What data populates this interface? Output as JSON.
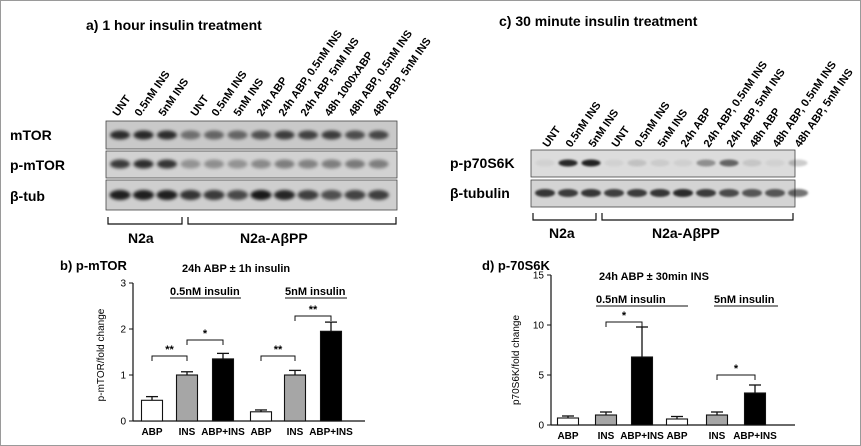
{
  "panel_a": {
    "title": "a) 1 hour insulin treatment",
    "lanes": [
      "UNT",
      "0.5nM INS",
      "5nM INS",
      "UNT",
      "0.5nM INS",
      "5nM INS",
      "24h ABP",
      "24h ABP, 0.5nM INS",
      "24h ABP, 5nM INS",
      "48h 1000xABP",
      "48h ABP, 0.5nM INS",
      "48h ABP, 5nM INS"
    ],
    "rows": [
      "mTOR",
      "p-mTOR",
      "β-tub"
    ],
    "groups": [
      "N2a",
      "N2a-AβPP"
    ]
  },
  "panel_c": {
    "title": "c)  30 minute insulin treatment",
    "lanes": [
      "UNT",
      "0.5nM INS",
      "5nM INS",
      "UNT",
      "0.5nM INS",
      "5nM INS",
      "24h ABP",
      "24h ABP, 0.5nM INS",
      "24h ABP, 5nM INS",
      "48h ABP",
      "48h ABP, 0.5nM INS",
      "48h ABP, 5nM INS"
    ],
    "rows": [
      "p-p70S6K",
      "β-tubulin"
    ],
    "groups": [
      "N2a",
      "N2a-AβPP"
    ]
  },
  "chart_data": [
    {
      "type": "bar",
      "panel_label": "b) p-mTOR",
      "title": "24h ABP ± 1h insulin",
      "ylabel": "p-mTOR/fold change",
      "ylim": [
        0,
        3
      ],
      "yticks": [
        "0",
        "1",
        "2",
        "3"
      ],
      "categories": [
        "ABP",
        "INS",
        "ABP+INS",
        "ABP",
        "INS",
        "ABP+INS"
      ],
      "values": [
        0.45,
        1.0,
        1.35,
        0.2,
        1.0,
        1.95
      ],
      "errors": [
        0.08,
        0.07,
        0.12,
        0.04,
        0.1,
        0.2
      ],
      "bar_colors": [
        "#ffffff",
        "#a6a6a6",
        "#000000",
        "#ffffff",
        "#a6a6a6",
        "#000000"
      ],
      "group_labels": [
        "0.5nM insulin",
        "5nM insulin"
      ],
      "significance": [
        "**",
        "*",
        "**",
        "**"
      ]
    },
    {
      "type": "bar",
      "panel_label": "d) p-70S6K",
      "title": "24h ABP ± 30min INS",
      "ylabel": "p70S6K/fold change",
      "ylim": [
        0,
        15
      ],
      "yticks": [
        "0",
        "5",
        "10",
        "15"
      ],
      "categories": [
        "ABP",
        "INS",
        "ABP+INS",
        "ABP",
        "INS",
        "ABP+INS"
      ],
      "values": [
        0.7,
        1.0,
        6.8,
        0.6,
        1.0,
        3.2
      ],
      "errors": [
        0.2,
        0.3,
        3.0,
        0.25,
        0.3,
        0.8
      ],
      "bar_colors": [
        "#ffffff",
        "#a6a6a6",
        "#000000",
        "#ffffff",
        "#a6a6a6",
        "#000000"
      ],
      "group_labels": [
        "0.5nM insulin",
        "5nM insulin"
      ],
      "significance": [
        "*",
        "*"
      ]
    }
  ]
}
